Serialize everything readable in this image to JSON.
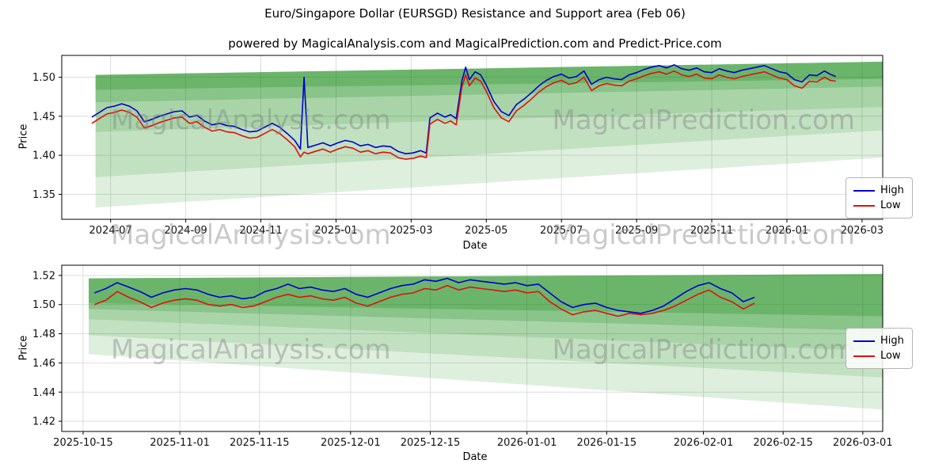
{
  "title": "Euro/Singapore Dollar (EURSGD) Resistance and Support area (Feb 06)",
  "subtitle": "powered by MagicalAnalysis.com and MagicalPrediction.com and Predict-Price.com",
  "watermarks": {
    "left": "MagicalAnalysis.com",
    "right": "MagicalPrediction.com"
  },
  "legend": {
    "high": "High",
    "low": "Low"
  },
  "colors": {
    "high_line": "#0000cc",
    "low_line": "#e01010",
    "band_green": "#008000",
    "grid": "#d9d9d9",
    "spine": "#000000",
    "watermark": "#808080"
  },
  "chart_data": [
    {
      "name": "long-term-chart",
      "type": "line",
      "xlabel": "Date",
      "ylabel": "Price",
      "x_unit": "months since 2024-01 (6 = 2024-07)",
      "xlim": [
        4.7,
        26.55
      ],
      "ylim": [
        1.318,
        1.528
      ],
      "grid": true,
      "legend_position": "right",
      "xticks": [
        6,
        8,
        10,
        12,
        14,
        16,
        18,
        20,
        22,
        24,
        26
      ],
      "xtick_labels": [
        "2024-07",
        "2024-09",
        "2024-11",
        "2025-01",
        "2025-03",
        "2025-05",
        "2025-07",
        "2025-09",
        "2025-11",
        "2026-01",
        "2026-03"
      ],
      "yticks": [
        1.35,
        1.4,
        1.45,
        1.5
      ],
      "ytick_labels": [
        "1.35",
        "1.40",
        "1.45",
        "1.50"
      ],
      "series": [
        {
          "name": "High",
          "color": "#0000cc",
          "x": [
            5.5,
            5.7,
            5.9,
            6.1,
            6.3,
            6.5,
            6.7,
            6.9,
            7.1,
            7.3,
            7.5,
            7.7,
            7.9,
            8.1,
            8.3,
            8.5,
            8.7,
            8.9,
            9.1,
            9.3,
            9.5,
            9.7,
            9.9,
            10.1,
            10.3,
            10.5,
            10.7,
            10.9,
            11.05,
            11.15,
            11.25,
            11.45,
            11.65,
            11.85,
            12.05,
            12.25,
            12.45,
            12.65,
            12.85,
            13.05,
            13.25,
            13.45,
            13.65,
            13.85,
            14.05,
            14.25,
            14.4,
            14.5,
            14.7,
            14.9,
            15.05,
            15.2,
            15.35,
            15.45,
            15.55,
            15.7,
            15.85,
            16.0,
            16.2,
            16.4,
            16.6,
            16.8,
            17.0,
            17.2,
            17.4,
            17.6,
            17.8,
            18.0,
            18.2,
            18.4,
            18.6,
            18.8,
            19.0,
            19.2,
            19.4,
            19.6,
            19.8,
            20.0,
            20.2,
            20.4,
            20.6,
            20.8,
            21.0,
            21.2,
            21.4,
            21.6,
            21.8,
            22.0,
            22.2,
            22.4,
            22.6,
            22.8,
            23.0,
            23.2,
            23.4,
            23.6,
            23.8,
            24.0,
            24.2,
            24.4,
            24.6,
            24.8,
            25.0,
            25.15,
            25.3
          ],
          "y": [
            1.449,
            1.455,
            1.461,
            1.463,
            1.466,
            1.463,
            1.457,
            1.443,
            1.446,
            1.45,
            1.453,
            1.456,
            1.457,
            1.449,
            1.451,
            1.444,
            1.439,
            1.441,
            1.438,
            1.437,
            1.433,
            1.43,
            1.431,
            1.436,
            1.441,
            1.436,
            1.428,
            1.419,
            1.408,
            1.5,
            1.41,
            1.413,
            1.416,
            1.412,
            1.416,
            1.419,
            1.417,
            1.412,
            1.414,
            1.41,
            1.412,
            1.411,
            1.405,
            1.402,
            1.403,
            1.406,
            1.403,
            1.448,
            1.454,
            1.449,
            1.452,
            1.447,
            1.495,
            1.513,
            1.497,
            1.507,
            1.503,
            1.49,
            1.469,
            1.456,
            1.451,
            1.465,
            1.472,
            1.48,
            1.489,
            1.496,
            1.501,
            1.504,
            1.499,
            1.501,
            1.508,
            1.491,
            1.497,
            1.5,
            1.498,
            1.497,
            1.503,
            1.506,
            1.51,
            1.513,
            1.515,
            1.512,
            1.516,
            1.511,
            1.509,
            1.512,
            1.507,
            1.506,
            1.511,
            1.508,
            1.506,
            1.509,
            1.511,
            1.513,
            1.515,
            1.511,
            1.507,
            1.505,
            1.497,
            1.494,
            1.503,
            1.502,
            1.508,
            1.504,
            1.501
          ]
        },
        {
          "name": "Low",
          "color": "#e01010",
          "x": [
            5.5,
            5.7,
            5.9,
            6.1,
            6.3,
            6.5,
            6.7,
            6.9,
            7.1,
            7.3,
            7.5,
            7.7,
            7.9,
            8.1,
            8.3,
            8.5,
            8.7,
            8.9,
            9.1,
            9.3,
            9.5,
            9.7,
            9.9,
            10.1,
            10.3,
            10.5,
            10.7,
            10.9,
            11.05,
            11.15,
            11.25,
            11.45,
            11.65,
            11.85,
            12.05,
            12.25,
            12.45,
            12.65,
            12.85,
            13.05,
            13.25,
            13.45,
            13.65,
            13.85,
            14.05,
            14.25,
            14.4,
            14.5,
            14.7,
            14.9,
            15.05,
            15.2,
            15.35,
            15.45,
            15.55,
            15.7,
            15.85,
            16.0,
            16.2,
            16.4,
            16.6,
            16.8,
            17.0,
            17.2,
            17.4,
            17.6,
            17.8,
            18.0,
            18.2,
            18.4,
            18.6,
            18.8,
            19.0,
            19.2,
            19.4,
            19.6,
            19.8,
            20.0,
            20.2,
            20.4,
            20.6,
            20.8,
            21.0,
            21.2,
            21.4,
            21.6,
            21.8,
            22.0,
            22.2,
            22.4,
            22.6,
            22.8,
            23.0,
            23.2,
            23.4,
            23.6,
            23.8,
            24.0,
            24.2,
            24.4,
            24.6,
            24.8,
            25.0,
            25.15,
            25.3
          ],
          "y": [
            1.441,
            1.447,
            1.453,
            1.455,
            1.458,
            1.455,
            1.449,
            1.435,
            1.438,
            1.442,
            1.445,
            1.448,
            1.449,
            1.441,
            1.443,
            1.436,
            1.431,
            1.433,
            1.43,
            1.429,
            1.425,
            1.422,
            1.423,
            1.428,
            1.433,
            1.428,
            1.42,
            1.411,
            1.398,
            1.404,
            1.402,
            1.405,
            1.408,
            1.404,
            1.408,
            1.411,
            1.409,
            1.404,
            1.406,
            1.402,
            1.404,
            1.403,
            1.397,
            1.395,
            1.396,
            1.399,
            1.397,
            1.44,
            1.446,
            1.441,
            1.444,
            1.439,
            1.487,
            1.503,
            1.489,
            1.499,
            1.495,
            1.482,
            1.461,
            1.448,
            1.443,
            1.457,
            1.464,
            1.472,
            1.481,
            1.488,
            1.493,
            1.496,
            1.491,
            1.493,
            1.5,
            1.483,
            1.489,
            1.492,
            1.49,
            1.489,
            1.495,
            1.498,
            1.502,
            1.505,
            1.507,
            1.504,
            1.508,
            1.503,
            1.501,
            1.504,
            1.499,
            1.498,
            1.503,
            1.5,
            1.498,
            1.501,
            1.503,
            1.505,
            1.507,
            1.503,
            1.499,
            1.497,
            1.489,
            1.486,
            1.495,
            1.494,
            1.5,
            1.496,
            1.495
          ]
        }
      ],
      "bands": [
        {
          "color": "#008000",
          "opacity": 0.13,
          "points": [
            [
              5.6,
              1.333
            ],
            [
              26.55,
              1.397
            ],
            [
              26.55,
              1.52
            ],
            [
              5.6,
              1.503
            ]
          ]
        },
        {
          "color": "#008000",
          "opacity": 0.13,
          "points": [
            [
              5.6,
              1.372
            ],
            [
              26.55,
              1.432
            ],
            [
              26.55,
              1.52
            ],
            [
              5.6,
              1.503
            ]
          ]
        },
        {
          "color": "#008000",
          "opacity": 0.13,
          "points": [
            [
              5.6,
              1.43
            ],
            [
              26.55,
              1.462
            ],
            [
              26.55,
              1.52
            ],
            [
              5.6,
              1.503
            ]
          ]
        },
        {
          "color": "#008000",
          "opacity": 0.18,
          "points": [
            [
              5.6,
              1.468
            ],
            [
              26.55,
              1.488
            ],
            [
              26.55,
              1.52
            ],
            [
              5.6,
              1.503
            ]
          ]
        },
        {
          "color": "#008000",
          "opacity": 0.22,
          "points": [
            [
              5.6,
              1.484
            ],
            [
              26.55,
              1.498
            ],
            [
              26.55,
              1.52
            ],
            [
              5.6,
              1.503
            ]
          ]
        }
      ]
    },
    {
      "name": "recent-forecast-chart",
      "type": "line",
      "xlabel": "Date",
      "ylabel": "Price",
      "x_unit": "days since 2025-10-15",
      "xlim": [
        -3.75,
        140.5
      ],
      "ylim": [
        1.413,
        1.527
      ],
      "grid": true,
      "legend_position": "right",
      "xticks": [
        0,
        17,
        31,
        47,
        61,
        78,
        92,
        109,
        123,
        137
      ],
      "xtick_labels": [
        "2025-10-15",
        "2025-11-01",
        "2025-11-15",
        "2025-12-01",
        "2025-12-15",
        "2026-01-01",
        "2026-01-15",
        "2026-02-01",
        "2026-02-15",
        "2026-03-01"
      ],
      "yticks": [
        1.42,
        1.44,
        1.46,
        1.48,
        1.5,
        1.52
      ],
      "ytick_labels": [
        "1.42",
        "1.44",
        "1.46",
        "1.48",
        "1.50",
        "1.52"
      ],
      "series": [
        {
          "name": "High",
          "color": "#0000cc",
          "x": [
            2,
            4,
            6,
            8,
            10,
            12,
            14,
            16,
            18,
            20,
            22,
            24,
            26,
            28,
            30,
            32,
            34,
            36,
            38,
            40,
            42,
            44,
            46,
            48,
            50,
            52,
            54,
            56,
            58,
            60,
            62,
            64,
            66,
            68,
            70,
            72,
            74,
            76,
            78,
            80,
            82,
            84,
            86,
            88,
            90,
            92,
            94,
            96,
            98,
            100,
            102,
            104,
            106,
            108,
            110,
            112,
            114,
            116,
            118
          ],
          "y": [
            1.508,
            1.511,
            1.515,
            1.512,
            1.509,
            1.505,
            1.508,
            1.51,
            1.511,
            1.51,
            1.507,
            1.505,
            1.506,
            1.504,
            1.505,
            1.509,
            1.511,
            1.514,
            1.511,
            1.512,
            1.51,
            1.509,
            1.511,
            1.507,
            1.505,
            1.508,
            1.511,
            1.513,
            1.514,
            1.517,
            1.516,
            1.518,
            1.515,
            1.517,
            1.516,
            1.515,
            1.514,
            1.515,
            1.513,
            1.514,
            1.508,
            1.502,
            1.498,
            1.5,
            1.501,
            1.498,
            1.496,
            1.495,
            1.494,
            1.496,
            1.499,
            1.504,
            1.509,
            1.513,
            1.515,
            1.511,
            1.508,
            1.502,
            1.505
          ]
        },
        {
          "name": "Low",
          "color": "#e01010",
          "x": [
            2,
            4,
            6,
            8,
            10,
            12,
            14,
            16,
            18,
            20,
            22,
            24,
            26,
            28,
            30,
            32,
            34,
            36,
            38,
            40,
            42,
            44,
            46,
            48,
            50,
            52,
            54,
            56,
            58,
            60,
            62,
            64,
            66,
            68,
            70,
            72,
            74,
            76,
            78,
            80,
            82,
            84,
            86,
            88,
            90,
            92,
            94,
            96,
            98,
            100,
            102,
            104,
            106,
            108,
            110,
            112,
            114,
            116,
            118
          ],
          "y": [
            1.5,
            1.503,
            1.509,
            1.505,
            1.502,
            1.498,
            1.501,
            1.503,
            1.504,
            1.503,
            1.5,
            1.499,
            1.5,
            1.498,
            1.499,
            1.502,
            1.505,
            1.507,
            1.505,
            1.506,
            1.504,
            1.503,
            1.505,
            1.501,
            1.499,
            1.502,
            1.505,
            1.507,
            1.508,
            1.511,
            1.51,
            1.513,
            1.51,
            1.512,
            1.511,
            1.51,
            1.509,
            1.51,
            1.508,
            1.509,
            1.502,
            1.497,
            1.493,
            1.495,
            1.496,
            1.494,
            1.492,
            1.494,
            1.493,
            1.494,
            1.496,
            1.499,
            1.503,
            1.507,
            1.51,
            1.505,
            1.502,
            1.497,
            1.501
          ]
        }
      ],
      "bands": [
        {
          "color": "#008000",
          "opacity": 0.13,
          "points": [
            [
              1,
              1.466
            ],
            [
              140.5,
              1.428
            ],
            [
              140.5,
              1.521
            ],
            [
              1,
              1.518
            ]
          ]
        },
        {
          "color": "#008000",
          "opacity": 0.13,
          "points": [
            [
              1,
              1.479
            ],
            [
              140.5,
              1.45
            ],
            [
              140.5,
              1.521
            ],
            [
              1,
              1.518
            ]
          ]
        },
        {
          "color": "#008000",
          "opacity": 0.13,
          "points": [
            [
              1,
              1.49
            ],
            [
              140.5,
              1.468
            ],
            [
              140.5,
              1.521
            ],
            [
              1,
              1.518
            ]
          ]
        },
        {
          "color": "#008000",
          "opacity": 0.18,
          "points": [
            [
              1,
              1.497
            ],
            [
              140.5,
              1.482
            ],
            [
              140.5,
              1.521
            ],
            [
              1,
              1.518
            ]
          ]
        },
        {
          "color": "#008000",
          "opacity": 0.22,
          "points": [
            [
              1,
              1.501
            ],
            [
              140.5,
              1.492
            ],
            [
              140.5,
              1.521
            ],
            [
              1,
              1.518
            ]
          ]
        }
      ]
    }
  ]
}
